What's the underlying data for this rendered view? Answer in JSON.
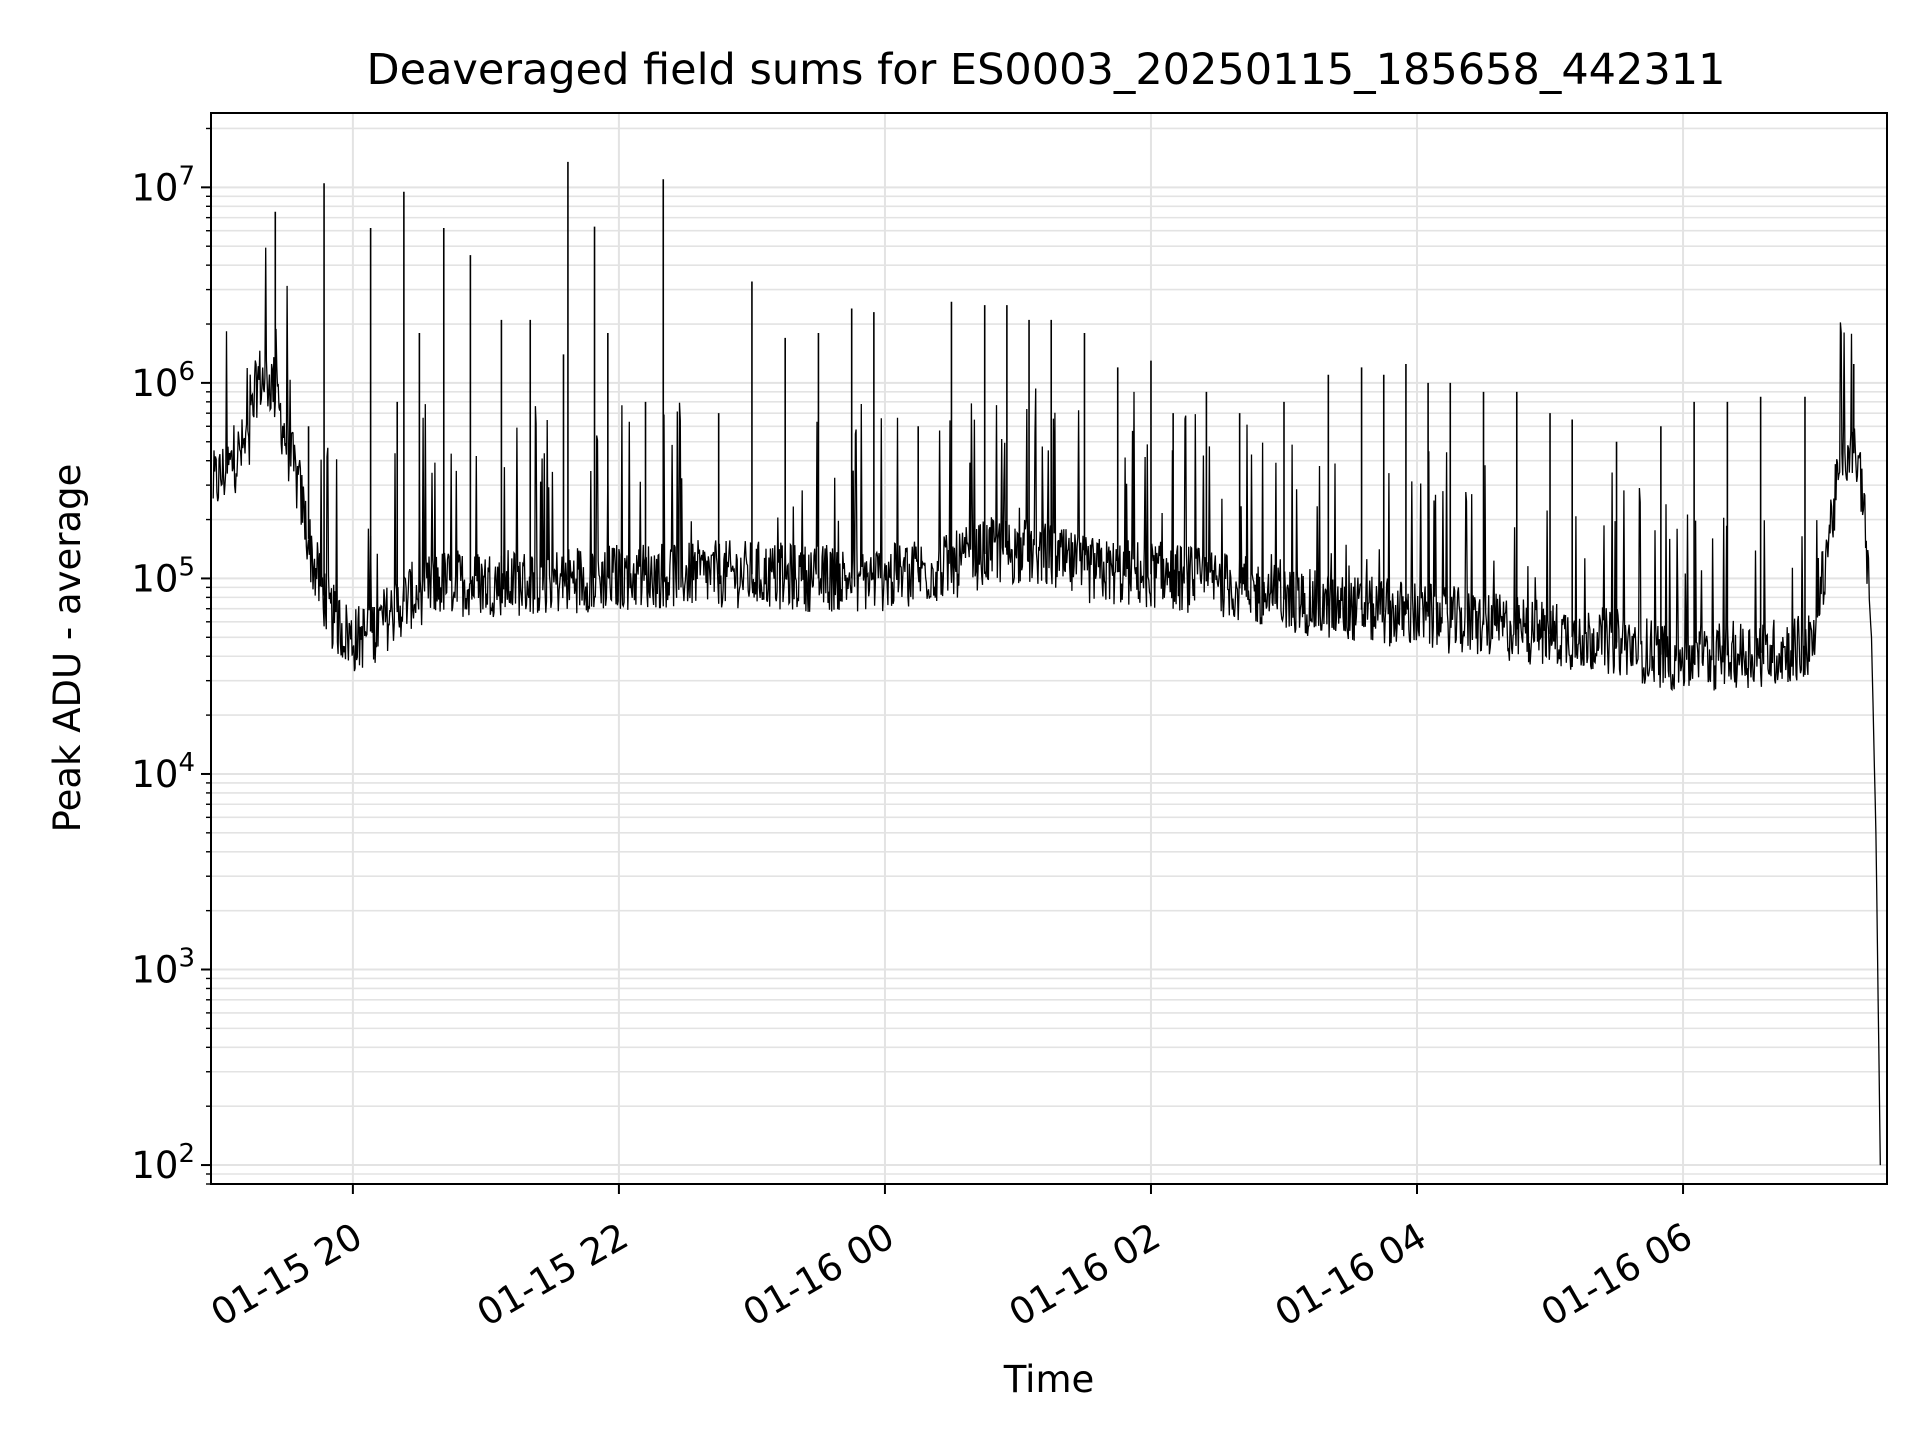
{
  "chart_data": {
    "type": "line",
    "title": "Deaveraged field sums for ES0003_20250115_185658_442311",
    "xlabel": "Time",
    "ylabel": "Peak ADU - average",
    "x_ticks": [
      "01-15 20",
      "01-15 22",
      "01-16 00",
      "01-16 02",
      "01-16 04",
      "01-16 06"
    ],
    "y_ticks": [
      {
        "value": 100,
        "base": "10",
        "exp": "2"
      },
      {
        "value": 1000,
        "base": "10",
        "exp": "3"
      },
      {
        "value": 10000,
        "base": "10",
        "exp": "4"
      },
      {
        "value": 100000,
        "base": "10",
        "exp": "5"
      },
      {
        "value": 1000000,
        "base": "10",
        "exp": "6"
      },
      {
        "value": 10000000,
        "base": "10",
        "exp": "7"
      }
    ],
    "y_scale": "log",
    "xlim": [
      "2025-01-15 18:56",
      "2025-01-16 07:32"
    ],
    "ylim": [
      80,
      24000000
    ],
    "grid": true,
    "series": [
      {
        "color": "#000000",
        "baseline": [
          [
            "2025-01-15 18:57",
            300000
          ],
          [
            "2025-01-15 19:05",
            380000
          ],
          [
            "2025-01-15 19:13",
            500000
          ],
          [
            "2025-01-15 19:17",
            1050000
          ],
          [
            "2025-01-15 19:24",
            1000000
          ],
          [
            "2025-01-15 19:30",
            500000
          ],
          [
            "2025-01-15 19:36",
            280000
          ],
          [
            "2025-01-15 19:42",
            120000
          ],
          [
            "2025-01-15 19:50",
            65000
          ],
          [
            "2025-01-15 20:00",
            48000
          ],
          [
            "2025-01-15 20:10",
            55000
          ],
          [
            "2025-01-15 20:25",
            80000
          ],
          [
            "2025-01-15 20:40",
            95000
          ],
          [
            "2025-01-15 21:00",
            95000
          ],
          [
            "2025-01-15 21:20",
            95000
          ],
          [
            "2025-01-15 21:45",
            100000
          ],
          [
            "2025-01-15 22:20",
            105000
          ],
          [
            "2025-01-15 23:00",
            105000
          ],
          [
            "2025-01-15 23:30",
            100000
          ],
          [
            "2025-01-16 00:00",
            100000
          ],
          [
            "2025-01-16 00:30",
            115000
          ],
          [
            "2025-01-16 00:50",
            140000
          ],
          [
            "2025-01-16 01:10",
            135000
          ],
          [
            "2025-01-16 01:30",
            110000
          ],
          [
            "2025-01-16 02:00",
            105000
          ],
          [
            "2025-01-16 02:30",
            95000
          ],
          [
            "2025-01-16 03:00",
            78000
          ],
          [
            "2025-01-16 03:30",
            70000
          ],
          [
            "2025-01-16 04:00",
            65000
          ],
          [
            "2025-01-16 04:30",
            58000
          ],
          [
            "2025-01-16 05:00",
            52000
          ],
          [
            "2025-01-16 05:30",
            47000
          ],
          [
            "2025-01-16 06:00",
            38000
          ],
          [
            "2025-01-16 06:15",
            40000
          ],
          [
            "2025-01-16 06:40",
            42000
          ],
          [
            "2025-01-16 06:59",
            45000
          ],
          [
            "2025-01-16 07:05",
            150000
          ],
          [
            "2025-01-16 07:12",
            420000
          ],
          [
            "2025-01-16 07:16",
            480000
          ],
          [
            "2025-01-16 07:21",
            300000
          ],
          [
            "2025-01-16 07:25",
            50000
          ],
          [
            "2025-01-16 07:27",
            5000
          ],
          [
            "2025-01-16 07:29",
            100
          ]
        ],
        "spikes": [
          [
            "2025-01-15 19:25",
            7500000
          ],
          [
            "2025-01-15 19:40",
            600000
          ],
          [
            "2025-01-15 19:47",
            10500000
          ],
          [
            "2025-01-15 20:08",
            6200000
          ],
          [
            "2025-01-15 20:20",
            800000
          ],
          [
            "2025-01-15 20:23",
            9500000
          ],
          [
            "2025-01-15 20:30",
            1800000
          ],
          [
            "2025-01-15 20:41",
            6200000
          ],
          [
            "2025-01-15 20:53",
            4500000
          ],
          [
            "2025-01-15 21:07",
            2100000
          ],
          [
            "2025-01-15 21:20",
            2100000
          ],
          [
            "2025-01-15 21:35",
            1400000
          ],
          [
            "2025-01-15 21:37",
            13500000
          ],
          [
            "2025-01-15 21:49",
            6300000
          ],
          [
            "2025-01-15 21:55",
            1800000
          ],
          [
            "2025-01-15 22:12",
            800000
          ],
          [
            "2025-01-15 22:20",
            11000000
          ],
          [
            "2025-01-15 22:45",
            700000
          ],
          [
            "2025-01-15 23:00",
            3300000
          ],
          [
            "2025-01-15 23:15",
            1700000
          ],
          [
            "2025-01-15 23:30",
            1800000
          ],
          [
            "2025-01-15 23:45",
            2400000
          ],
          [
            "2025-01-15 23:55",
            2300000
          ],
          [
            "2025-01-16 00:15",
            600000
          ],
          [
            "2025-01-16 00:30",
            2600000
          ],
          [
            "2025-01-16 00:45",
            2500000
          ],
          [
            "2025-01-16 00:55",
            2500000
          ],
          [
            "2025-01-16 01:05",
            2100000
          ],
          [
            "2025-01-16 01:15",
            2100000
          ],
          [
            "2025-01-16 01:30",
            1800000
          ],
          [
            "2025-01-16 01:45",
            1200000
          ],
          [
            "2025-01-16 02:00",
            1300000
          ],
          [
            "2025-01-16 02:10",
            700000
          ],
          [
            "2025-01-16 02:25",
            900000
          ],
          [
            "2025-01-16 02:40",
            700000
          ],
          [
            "2025-01-16 03:00",
            800000
          ],
          [
            "2025-01-16 03:20",
            1100000
          ],
          [
            "2025-01-16 03:35",
            1200000
          ],
          [
            "2025-01-16 03:45",
            1100000
          ],
          [
            "2025-01-16 03:55",
            1250000
          ],
          [
            "2025-01-16 04:05",
            1000000
          ],
          [
            "2025-01-16 04:15",
            1000000
          ],
          [
            "2025-01-16 04:30",
            900000
          ],
          [
            "2025-01-16 04:45",
            900000
          ],
          [
            "2025-01-16 05:00",
            700000
          ],
          [
            "2025-01-16 05:10",
            650000
          ],
          [
            "2025-01-16 05:30",
            500000
          ],
          [
            "2025-01-16 05:50",
            600000
          ],
          [
            "2025-01-16 06:05",
            800000
          ],
          [
            "2025-01-16 06:20",
            800000
          ],
          [
            "2025-01-16 06:35",
            850000
          ],
          [
            "2025-01-16 06:55",
            850000
          ],
          [
            "2025-01-16 07:17",
            1250000
          ]
        ]
      }
    ]
  }
}
